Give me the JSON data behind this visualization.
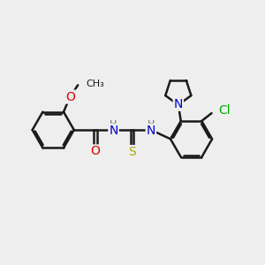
{
  "bg_color": "#eeeeee",
  "bond_color": "#1a1a1a",
  "bond_width": 1.8,
  "dbo": 0.07,
  "atom_colors": {
    "O": "#dd0000",
    "N": "#0000cc",
    "S": "#aaaa00",
    "Cl": "#00aa00",
    "H": "#666666"
  },
  "font_size": 10,
  "small_font": 8
}
